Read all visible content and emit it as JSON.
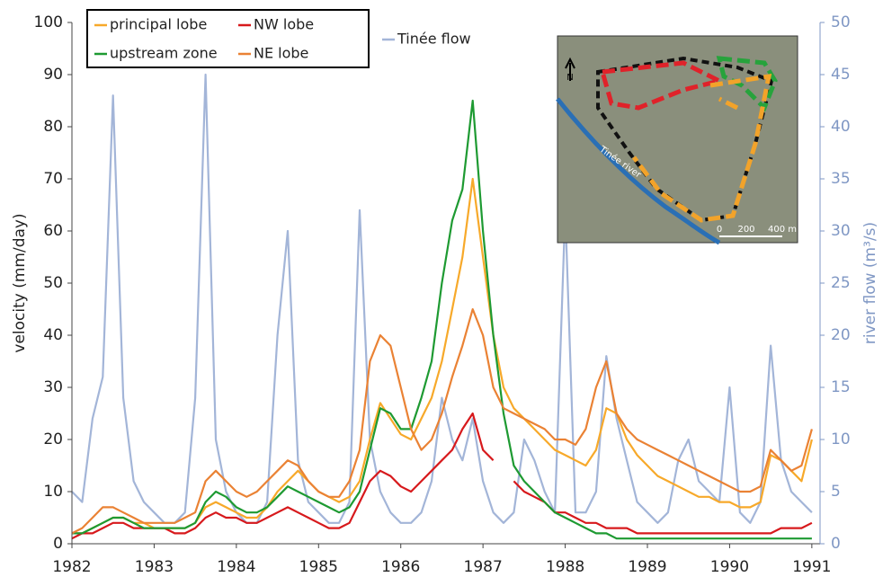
{
  "chart_data": {
    "type": "line",
    "x": [
      1982,
      1982.125,
      1982.25,
      1982.375,
      1982.5,
      1982.625,
      1982.75,
      1982.875,
      1983,
      1983.125,
      1983.25,
      1983.375,
      1983.5,
      1983.625,
      1983.75,
      1983.875,
      1984,
      1984.125,
      1984.25,
      1984.375,
      1984.5,
      1984.625,
      1984.75,
      1984.875,
      1985,
      1985.125,
      1985.25,
      1985.375,
      1985.5,
      1985.625,
      1985.75,
      1985.875,
      1986,
      1986.125,
      1986.25,
      1986.375,
      1986.5,
      1986.625,
      1986.75,
      1986.875,
      1987,
      1987.125,
      1987.25,
      1987.375,
      1987.5,
      1987.625,
      1987.75,
      1987.875,
      1988,
      1988.125,
      1988.25,
      1988.375,
      1988.5,
      1988.625,
      1988.75,
      1988.875,
      1989,
      1989.125,
      1989.25,
      1989.375,
      1989.5,
      1989.625,
      1989.75,
      1989.875,
      1990,
      1990.125,
      1990.25,
      1990.375,
      1990.5,
      1990.625,
      1990.75,
      1990.875,
      1991
    ],
    "series": [
      {
        "name": "principal lobe",
        "color": "#f7a92a",
        "values": [
          2,
          2,
          3,
          4,
          5,
          5,
          4,
          4,
          3,
          3,
          3,
          3,
          4,
          7,
          8,
          7,
          6,
          5,
          5,
          7,
          10,
          12,
          14,
          12,
          10,
          9,
          8,
          9,
          12,
          20,
          27,
          24,
          21,
          20,
          24,
          28,
          35,
          45,
          55,
          70,
          55,
          40,
          30,
          26,
          24,
          22,
          20,
          18,
          17,
          16,
          15,
          18,
          26,
          25,
          20,
          17,
          15,
          13,
          12,
          11,
          10,
          9,
          9,
          8,
          8,
          7,
          7,
          8,
          17,
          16,
          14,
          12,
          20
        ]
      },
      {
        "name": "NW lobe",
        "color": "#d7191c",
        "values": [
          1,
          2,
          2,
          3,
          4,
          4,
          3,
          3,
          3,
          3,
          2,
          2,
          3,
          5,
          6,
          5,
          5,
          4,
          4,
          5,
          6,
          7,
          6,
          5,
          4,
          3,
          3,
          4,
          8,
          12,
          14,
          13,
          11,
          10,
          12,
          14,
          16,
          18,
          22,
          25,
          18,
          16,
          null,
          12,
          10,
          9,
          8,
          6,
          6,
          5,
          4,
          4,
          3,
          3,
          3,
          2,
          2,
          2,
          2,
          2,
          2,
          2,
          2,
          2,
          2,
          2,
          2,
          2,
          2,
          3,
          3,
          3,
          4
        ]
      },
      {
        "name": "upstream zone",
        "color": "#1e9a32",
        "values": [
          2,
          2,
          3,
          4,
          5,
          5,
          4,
          3,
          3,
          3,
          3,
          3,
          4,
          8,
          10,
          9,
          7,
          6,
          6,
          7,
          9,
          11,
          10,
          9,
          8,
          7,
          6,
          7,
          10,
          18,
          26,
          25,
          22,
          22,
          28,
          35,
          50,
          62,
          68,
          85,
          60,
          40,
          25,
          15,
          12,
          10,
          8,
          6,
          5,
          4,
          3,
          2,
          2,
          1,
          1,
          1,
          1,
          1,
          1,
          1,
          1,
          1,
          1,
          1,
          1,
          1,
          1,
          1,
          1,
          1,
          1,
          1,
          1
        ]
      },
      {
        "name": "NE lobe",
        "color": "#ea8234",
        "values": [
          2,
          3,
          5,
          7,
          7,
          6,
          5,
          4,
          4,
          4,
          4,
          5,
          6,
          12,
          14,
          12,
          10,
          9,
          10,
          12,
          14,
          16,
          15,
          12,
          10,
          9,
          9,
          12,
          18,
          35,
          40,
          38,
          30,
          22,
          18,
          20,
          25,
          32,
          38,
          45,
          40,
          30,
          26,
          25,
          24,
          23,
          22,
          20,
          20,
          19,
          22,
          30,
          35,
          25,
          22,
          20,
          19,
          18,
          17,
          16,
          15,
          14,
          13,
          12,
          11,
          10,
          10,
          11,
          18,
          16,
          14,
          15,
          22
        ]
      },
      {
        "name": "Tinée flow",
        "color": "#a3b5d8",
        "axis": "y2",
        "values": [
          5,
          4,
          12,
          16,
          43,
          14,
          6,
          4,
          3,
          2,
          2,
          3,
          14,
          45,
          10,
          5,
          3,
          2,
          2,
          4,
          20,
          30,
          8,
          4,
          3,
          2,
          2,
          4,
          32,
          10,
          5,
          3,
          2,
          2,
          3,
          6,
          14,
          10,
          8,
          12,
          6,
          3,
          2,
          3,
          10,
          8,
          5,
          3,
          32,
          3,
          3,
          5,
          18,
          12,
          8,
          4,
          3,
          2,
          3,
          8,
          10,
          6,
          5,
          4,
          15,
          3,
          2,
          4,
          19,
          8,
          5,
          4,
          3
        ]
      }
    ],
    "xlim": [
      1982,
      1991.1
    ],
    "xticks": [
      1982,
      1983,
      1984,
      1985,
      1986,
      1987,
      1988,
      1989,
      1990,
      1991
    ],
    "ylim": [
      0,
      100
    ],
    "yticks": [
      0,
      10,
      20,
      30,
      40,
      50,
      60,
      70,
      80,
      90,
      100
    ],
    "y2lim": [
      0,
      50
    ],
    "y2ticks": [
      0,
      5,
      10,
      15,
      20,
      25,
      30,
      35,
      40,
      45,
      50
    ],
    "y_label": "velocity (mm/day)",
    "y2_label": "river flow (m³/s)",
    "inset_labels": [
      "N",
      "Tinée river",
      "0",
      "200",
      "400 m"
    ]
  }
}
